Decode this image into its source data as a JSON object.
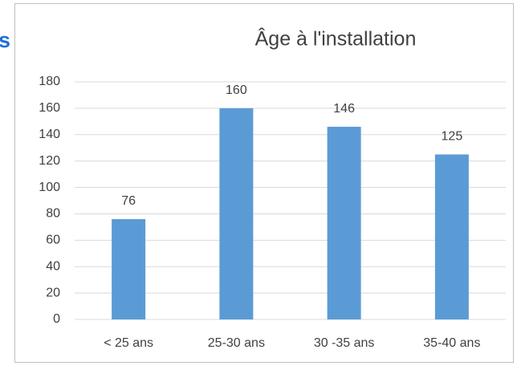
{
  "side_text": "s",
  "chart_data": {
    "type": "bar",
    "title": "Âge à l'installation",
    "categories": [
      "< 25 ans",
      "25-30 ans",
      "30 -35 ans",
      "35-40 ans"
    ],
    "values": [
      76,
      160,
      146,
      125
    ],
    "color": "#5b9bd5",
    "ylim": [
      0,
      180
    ],
    "yticks": [
      0,
      20,
      40,
      60,
      80,
      100,
      120,
      140,
      160,
      180
    ],
    "grid": true
  }
}
